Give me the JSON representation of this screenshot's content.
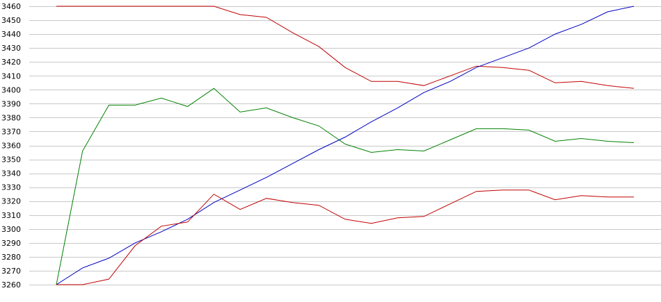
{
  "chart_data": {
    "type": "line",
    "title": "",
    "xlabel": "",
    "ylabel": "",
    "ylim": [
      3260,
      3460
    ],
    "yticks": [
      3260,
      3270,
      3280,
      3290,
      3300,
      3310,
      3320,
      3330,
      3340,
      3350,
      3360,
      3370,
      3380,
      3390,
      3400,
      3410,
      3420,
      3430,
      3440,
      3450,
      3460
    ],
    "grid": true,
    "legend": "none",
    "x": [
      0,
      1,
      2,
      3,
      4,
      5,
      6,
      7,
      8,
      9,
      10,
      11,
      12,
      13,
      14,
      15,
      16,
      17,
      18,
      19,
      20,
      21,
      22
    ],
    "series": [
      {
        "color": "#c00000",
        "values": [
          3460,
          3460,
          3460,
          3460,
          3460,
          3460,
          3460,
          3454,
          3452,
          3441,
          3431,
          3416,
          3406,
          3406,
          3403,
          3410,
          3417,
          3416,
          3414,
          3405,
          3406,
          3403,
          3401
        ]
      },
      {
        "color": "#008000",
        "values": [
          3260,
          3356,
          3389,
          3389,
          3394,
          3388,
          3401,
          3384,
          3387,
          3380,
          3374,
          3361,
          3355,
          3357,
          3356,
          3364,
          3372,
          3372,
          3371,
          3363,
          3365,
          3363,
          3362
        ]
      },
      {
        "color": "#0000c0",
        "values": [
          3260,
          3272,
          3279,
          3290,
          3298,
          3307,
          3319,
          3328,
          3337,
          3347,
          3357,
          3366,
          3377,
          3387,
          3398,
          3406,
          3416,
          3423,
          3430,
          3440,
          3447,
          3456,
          3460
        ]
      },
      {
        "color": "#c00000",
        "values": [
          3260,
          3260,
          3264,
          3288,
          3302,
          3305,
          3325,
          3314,
          3322,
          3319,
          3317,
          3307,
          3304,
          3308,
          3309,
          3318,
          3327,
          3328,
          3328,
          3321,
          3324,
          3323,
          3323
        ]
      }
    ]
  }
}
